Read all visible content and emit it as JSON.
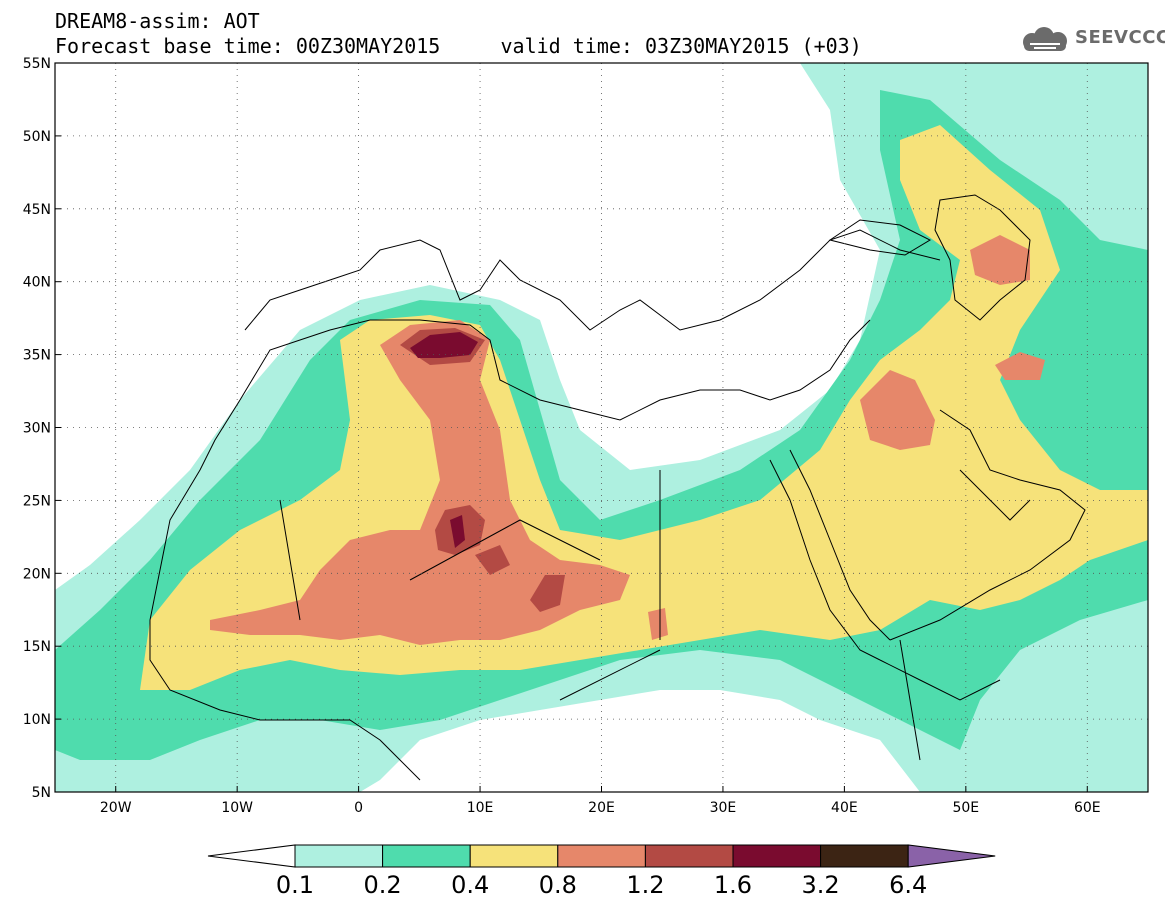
{
  "title": {
    "line1": "DREAM8-assim: AOT",
    "line2": "Forecast base time: 00Z30MAY2015     valid time: 03Z30MAY2015 (+03)"
  },
  "logo": {
    "text": "SEEVCCC",
    "icon": "cloud-icon",
    "color": "#6b6b6b"
  },
  "map": {
    "lon_range": [
      -25,
      65
    ],
    "lat_range": [
      5,
      55
    ],
    "lon_ticks": [
      {
        "value": -20,
        "label": "20W"
      },
      {
        "value": -10,
        "label": "10W"
      },
      {
        "value": 0,
        "label": "0"
      },
      {
        "value": 10,
        "label": "10E"
      },
      {
        "value": 20,
        "label": "20E"
      },
      {
        "value": 30,
        "label": "30E"
      },
      {
        "value": 40,
        "label": "40E"
      },
      {
        "value": 50,
        "label": "50E"
      },
      {
        "value": 60,
        "label": "60E"
      }
    ],
    "lat_ticks": [
      {
        "value": 55,
        "label": "55N"
      },
      {
        "value": 50,
        "label": "50N"
      },
      {
        "value": 45,
        "label": "45N"
      },
      {
        "value": 40,
        "label": "40N"
      },
      {
        "value": 35,
        "label": "35N"
      },
      {
        "value": 30,
        "label": "30N"
      },
      {
        "value": 25,
        "label": "25N"
      },
      {
        "value": 20,
        "label": "20N"
      },
      {
        "value": 15,
        "label": "15N"
      },
      {
        "value": 10,
        "label": "10N"
      },
      {
        "value": 5,
        "label": "5N"
      }
    ],
    "gridlines": "dotted"
  },
  "colorbar": {
    "boundaries": [
      "0.1",
      "0.2",
      "0.4",
      "0.8",
      "1.2",
      "1.6",
      "3.2",
      "6.4"
    ],
    "colors": [
      "#ffffff",
      "#aef0e0",
      "#4fdcad",
      "#f6e27a",
      "#e6876a",
      "#b34a44",
      "#7a0b2f",
      "#3c2414",
      "#8a62a8"
    ]
  }
}
